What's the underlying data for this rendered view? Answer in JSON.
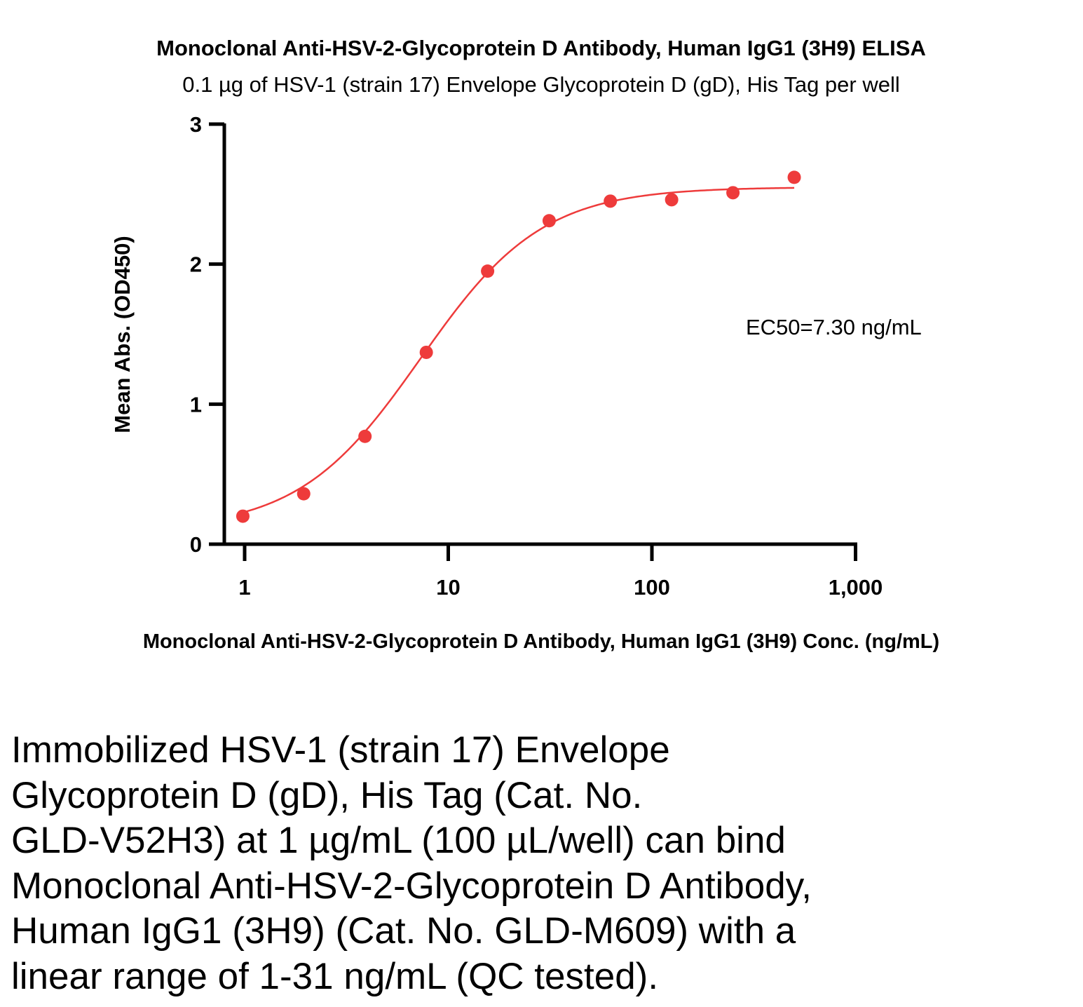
{
  "chart_data": {
    "type": "scatter",
    "title": "Monoclonal Anti-HSV-2-Glycoprotein D Antibody, Human IgG1 (3H9) ELISA",
    "subtitle": "0.1 µg of HSV-1 (strain 17) Envelope Glycoprotein D (gD), His Tag per well",
    "xlabel": "Monoclonal Anti-HSV-2-Glycoprotein D Antibody, Human IgG1 (3H9) Conc. (ng/mL)",
    "ylabel": "Mean Abs. (OD450)",
    "x_scale": "log",
    "xlim": [
      0.8,
      1000
    ],
    "ylim": [
      0,
      3
    ],
    "x_ticks": [
      1,
      10,
      100,
      1000
    ],
    "x_tick_labels": [
      "1",
      "10",
      "100",
      "1,000"
    ],
    "y_ticks": [
      0,
      1,
      2,
      3
    ],
    "y_tick_labels": [
      "0",
      "1",
      "2",
      "3"
    ],
    "grid": false,
    "point_color": "#ee3b3b",
    "curve_color": "#ee3b3b",
    "series": [
      {
        "x": [
          0.98,
          1.95,
          3.9,
          7.8,
          15.6,
          31.3,
          62.5,
          125,
          250,
          500
        ],
        "y": [
          0.2,
          0.36,
          0.77,
          1.37,
          1.95,
          2.31,
          2.45,
          2.46,
          2.51,
          2.62
        ]
      }
    ],
    "fit": {
      "model": "4PL",
      "bottom": 0.1,
      "top": 2.55,
      "ec50": 7.3,
      "hill": 1.45,
      "x_range": [
        0.98,
        500
      ]
    },
    "annotations": [
      "EC50=7.30 ng/mL"
    ]
  },
  "caption_lines": [
    "Immobilized HSV-1 (strain 17) Envelope",
    "Glycoprotein D (gD), His Tag (Cat. No.",
    "GLD-V52H3) at 1 µg/mL (100 µL/well) can bind",
    "Monoclonal Anti-HSV-2-Glycoprotein D Antibody,",
    "Human IgG1 (3H9) (Cat. No. GLD-M609) with a",
    "linear range of 1-31 ng/mL (QC tested)."
  ]
}
